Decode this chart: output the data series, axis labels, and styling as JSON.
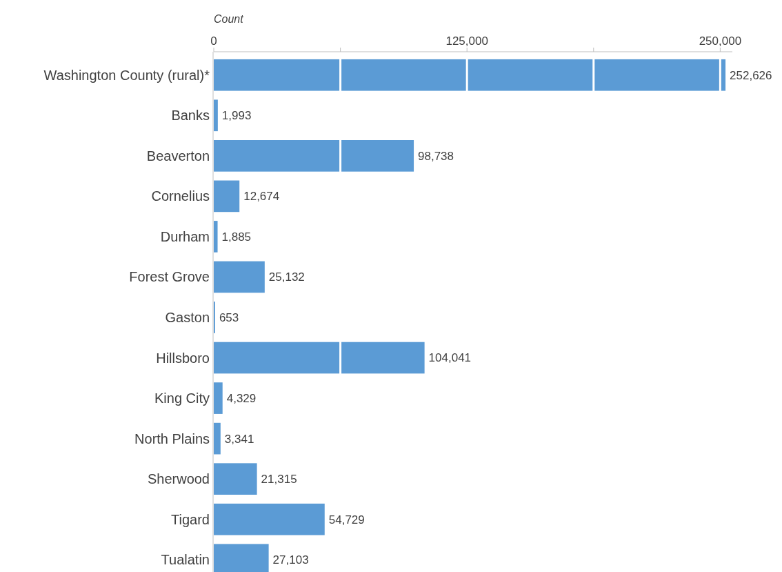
{
  "chart_data": {
    "type": "bar",
    "orientation": "horizontal",
    "xlabel": "Count",
    "categories": [
      "Washington County (rural)*",
      "Banks",
      "Beaverton",
      "Cornelius",
      "Durham",
      "Forest Grove",
      "Gaston",
      "Hillsboro",
      "King City",
      "North Plains",
      "Sherwood",
      "Tigard",
      "Tualatin"
    ],
    "values": [
      252626,
      1993,
      98738,
      12674,
      1885,
      25132,
      653,
      104041,
      4329,
      3341,
      21315,
      54729,
      27103
    ],
    "color": "#5b9bd5",
    "xlim": [
      0,
      256000
    ],
    "xticks": [
      0,
      {
        "value": 62500,
        "label": null
      },
      {
        "value": 125000,
        "label": "125,000"
      },
      {
        "value": 187500,
        "label": null
      },
      {
        "value": 250000,
        "label": "250,000"
      }
    ],
    "value_labels": [
      "252,626",
      "1,993",
      "98,738",
      "12,674",
      "1,885",
      "25,132",
      "653",
      "104,041",
      "4,329",
      "3,341",
      "21,315",
      "54,729",
      "27,103"
    ],
    "grid": "x"
  }
}
